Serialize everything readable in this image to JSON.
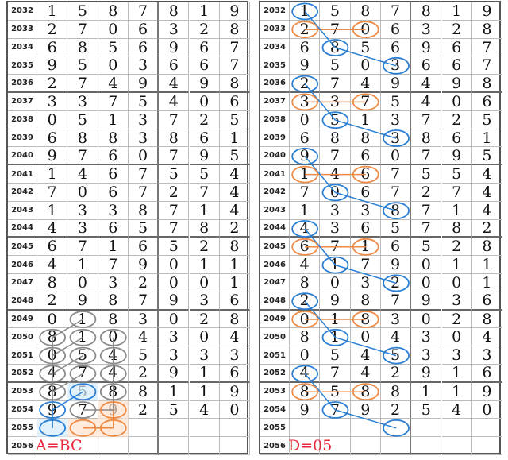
{
  "chart_data": {
    "type": "table",
    "rows": [
      {
        "period": "2032",
        "digits": [
          "1",
          "5",
          "8",
          "7",
          "8",
          "1",
          "9"
        ]
      },
      {
        "period": "2033",
        "digits": [
          "2",
          "7",
          "0",
          "6",
          "3",
          "2",
          "8"
        ]
      },
      {
        "period": "2034",
        "digits": [
          "6",
          "8",
          "5",
          "6",
          "9",
          "6",
          "7"
        ]
      },
      {
        "period": "2035",
        "digits": [
          "9",
          "5",
          "0",
          "3",
          "6",
          "6",
          "7"
        ]
      },
      {
        "period": "2036",
        "digits": [
          "2",
          "7",
          "4",
          "9",
          "4",
          "9",
          "8"
        ]
      },
      {
        "period": "2037",
        "digits": [
          "3",
          "3",
          "7",
          "5",
          "4",
          "0",
          "6"
        ]
      },
      {
        "period": "2038",
        "digits": [
          "0",
          "5",
          "1",
          "3",
          "7",
          "2",
          "5"
        ]
      },
      {
        "period": "2039",
        "digits": [
          "6",
          "8",
          "8",
          "3",
          "8",
          "6",
          "1"
        ]
      },
      {
        "period": "2040",
        "digits": [
          "9",
          "7",
          "6",
          "0",
          "7",
          "9",
          "5"
        ]
      },
      {
        "period": "2041",
        "digits": [
          "1",
          "4",
          "6",
          "7",
          "5",
          "5",
          "4"
        ]
      },
      {
        "period": "2042",
        "digits": [
          "7",
          "0",
          "6",
          "7",
          "2",
          "7",
          "4"
        ]
      },
      {
        "period": "2043",
        "digits": [
          "1",
          "3",
          "3",
          "8",
          "7",
          "1",
          "4"
        ]
      },
      {
        "period": "2044",
        "digits": [
          "4",
          "3",
          "6",
          "5",
          "7",
          "8",
          "2"
        ]
      },
      {
        "period": "2045",
        "digits": [
          "6",
          "7",
          "1",
          "6",
          "5",
          "2",
          "8"
        ]
      },
      {
        "period": "2046",
        "digits": [
          "4",
          "1",
          "7",
          "9",
          "0",
          "1",
          "1"
        ]
      },
      {
        "period": "2047",
        "digits": [
          "8",
          "0",
          "3",
          "2",
          "0",
          "0",
          "1"
        ]
      },
      {
        "period": "2048",
        "digits": [
          "2",
          "9",
          "8",
          "7",
          "9",
          "3",
          "6"
        ]
      },
      {
        "period": "2049",
        "digits": [
          "0",
          "1",
          "8",
          "3",
          "0",
          "2",
          "8"
        ]
      },
      {
        "period": "2050",
        "digits": [
          "8",
          "1",
          "0",
          "4",
          "3",
          "0",
          "4"
        ]
      },
      {
        "period": "2051",
        "digits": [
          "0",
          "5",
          "4",
          "5",
          "3",
          "3",
          "3"
        ]
      },
      {
        "period": "2052",
        "digits": [
          "4",
          "7",
          "4",
          "2",
          "9",
          "1",
          "6"
        ]
      },
      {
        "period": "2053",
        "digits": [
          "8",
          "5",
          "8",
          "8",
          "1",
          "1",
          "9"
        ]
      },
      {
        "period": "2054",
        "digits": [
          "9",
          "7",
          "9",
          "2",
          "5",
          "4",
          "0"
        ]
      },
      {
        "period": "2055",
        "digits": [
          "",
          "",
          "",
          "",
          "",
          "",
          ""
        ]
      },
      {
        "period": "2056",
        "digits": [
          "",
          "",
          "",
          "",
          "",
          "",
          ""
        ]
      }
    ],
    "colors": {
      "gray": "#8a8a8a",
      "blue": "#2a7fd4",
      "orange": "#ee8a44",
      "note": "#e8283a",
      "blue_fill": "#d6ecfb",
      "orange_fill": "#fde3cf"
    },
    "left_panel": {
      "formula": "A=BC",
      "marks": [
        {
          "period": "2049",
          "col": 1,
          "color": "gray"
        },
        {
          "period": "2050",
          "col": 0,
          "color": "gray"
        },
        {
          "period": "2050",
          "col": 1,
          "color": "gray"
        },
        {
          "period": "2050",
          "col": 2,
          "color": "gray"
        },
        {
          "period": "2051",
          "col": 0,
          "color": "gray"
        },
        {
          "period": "2051",
          "col": 1,
          "color": "gray"
        },
        {
          "period": "2051",
          "col": 2,
          "color": "gray"
        },
        {
          "period": "2052",
          "col": 0,
          "color": "gray"
        },
        {
          "period": "2052",
          "col": 1,
          "color": "gray"
        },
        {
          "period": "2052",
          "col": 2,
          "color": "gray"
        },
        {
          "period": "2053",
          "col": 0,
          "color": "gray"
        },
        {
          "period": "2053",
          "col": 1,
          "color": "blue",
          "fill": "blue_fill"
        },
        {
          "period": "2053",
          "col": 2,
          "color": "gray"
        },
        {
          "period": "2054",
          "col": 0,
          "color": "blue"
        },
        {
          "period": "2054",
          "col": 1,
          "color": "gray"
        },
        {
          "period": "2054",
          "col": 2,
          "color": "orange",
          "fill": "orange_fill"
        },
        {
          "period": "2055",
          "col": 0,
          "color": "blue",
          "fill": "blue_fill"
        },
        {
          "period": "2055",
          "col": 1,
          "color": "orange",
          "fill": "orange_fill"
        },
        {
          "period": "2055",
          "col": 2,
          "color": "orange",
          "fill": "orange_fill"
        }
      ],
      "links": [
        {
          "from": [
            "2049",
            1
          ],
          "to": [
            "2050",
            0
          ],
          "color": "gray"
        },
        {
          "from": [
            "2050",
            1
          ],
          "to": [
            "2051",
            0
          ],
          "color": "gray"
        },
        {
          "from": [
            "2051",
            1
          ],
          "to": [
            "2052",
            0
          ],
          "color": "gray"
        },
        {
          "from": [
            "2052",
            1
          ],
          "to": [
            "2053",
            0
          ],
          "color": "gray"
        },
        {
          "from": [
            "2050",
            0
          ],
          "to": [
            "2054",
            0
          ],
          "color": "gray"
        },
        {
          "from": [
            "2050",
            2
          ],
          "to": [
            "2054",
            2
          ],
          "color": "gray"
        },
        {
          "from": [
            "2053",
            1
          ],
          "to": [
            "2054",
            0
          ],
          "color": "blue"
        },
        {
          "from": [
            "2054",
            0
          ],
          "to": [
            "2055",
            0
          ],
          "color": "blue"
        },
        {
          "from": [
            "2054",
            1
          ],
          "to": [
            "2054",
            2
          ],
          "color": "gray"
        },
        {
          "from": [
            "2054",
            2
          ],
          "to": [
            "2055",
            2
          ],
          "color": "orange"
        },
        {
          "from": [
            "2055",
            1
          ],
          "to": [
            "2055",
            2
          ],
          "color": "orange"
        }
      ]
    },
    "right_panel": {
      "formula": "D=05",
      "pattern_starts": [
        "2032",
        "2036",
        "2040",
        "2044",
        "2048",
        "2052"
      ]
    }
  }
}
